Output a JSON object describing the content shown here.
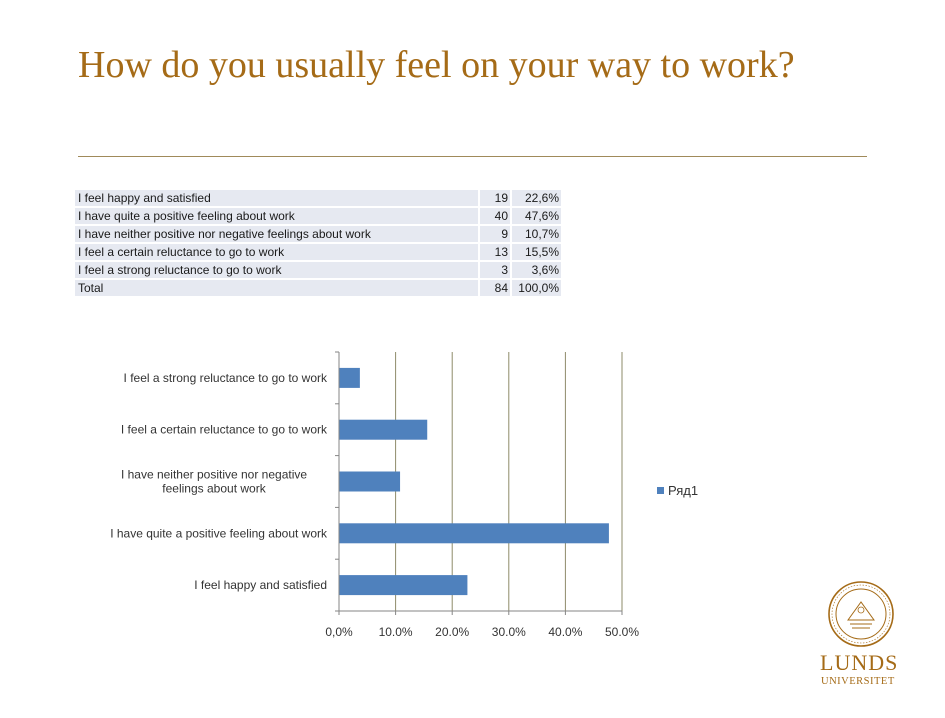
{
  "slide": {
    "title": "How do you usually feel on your way to work?"
  },
  "table": {
    "rows": [
      {
        "label": "I feel happy and satisfied",
        "count": "19",
        "percent": "22,6%"
      },
      {
        "label": "I have quite a positive feeling about work",
        "count": "40",
        "percent": "47,6%"
      },
      {
        "label": "I have neither positive nor negative feelings about work",
        "count": "9",
        "percent": "10,7%"
      },
      {
        "label": "I feel a certain reluctance to go to work",
        "count": "13",
        "percent": "15,5%"
      },
      {
        "label": "I feel a strong reluctance to go to work",
        "count": "3",
        "percent": "3,6%"
      },
      {
        "label": "Total",
        "count": "84",
        "percent": "100,0%"
      }
    ]
  },
  "chart_data": {
    "type": "bar",
    "orientation": "horizontal",
    "categories": [
      "I feel happy and satisfied",
      "I have quite a positive feeling about work",
      "I have neither positive nor negative feelings about work",
      "I feel a certain reluctance to go to work",
      "I feel a strong reluctance to go to work"
    ],
    "category_label_lines": [
      [
        "I feel happy and satisfied"
      ],
      [
        "I have quite a positive feeling about work"
      ],
      [
        "I have neither positive nor negative",
        "feelings about work"
      ],
      [
        "I feel a certain reluctance to go to work"
      ],
      [
        "I feel a strong reluctance to go to work"
      ]
    ],
    "series": [
      {
        "name": "Ряд1",
        "values": [
          0.226,
          0.476,
          0.107,
          0.155,
          0.036
        ],
        "color": "#4f81bd"
      }
    ],
    "xlim": [
      0,
      0.5
    ],
    "xticks": [
      0,
      0.1,
      0.2,
      0.3,
      0.4,
      0.5
    ],
    "xtick_labels": [
      "0,0%",
      "10.0%",
      "20.0%",
      "30.0%",
      "40.0%",
      "50.0%"
    ],
    "gridlines": "vertical",
    "gridline_color": "#8e8b6a",
    "legend_position": "right"
  },
  "logo": {
    "name": "LUNDS",
    "sub": "UNIVERSITET",
    "color": "#a56b17"
  }
}
